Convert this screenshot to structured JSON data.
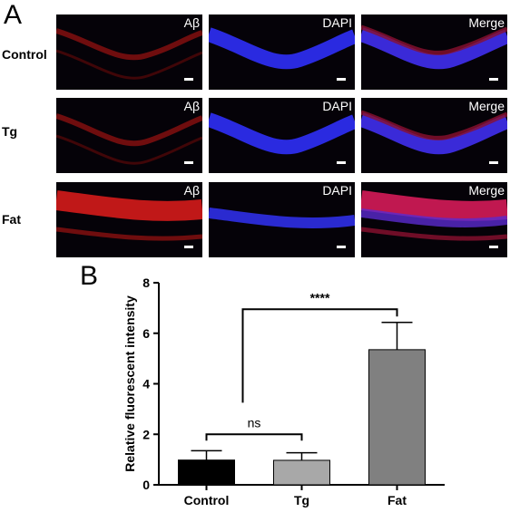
{
  "panel_a": {
    "letter": "A",
    "rows": [
      {
        "label": "Control"
      },
      {
        "label": "Tg"
      },
      {
        "label": "Fat"
      }
    ],
    "columns": [
      "Aβ",
      "DAPI",
      "Merge"
    ]
  },
  "panel_b": {
    "letter": "B"
  },
  "chart_data": {
    "type": "bar",
    "categories": [
      "Control",
      "Tg",
      "Fat"
    ],
    "values": [
      0.98,
      0.97,
      5.35
    ],
    "errors": [
      0.37,
      0.3,
      1.08
    ],
    "bar_colors": [
      "#000000",
      "#a8a8a8",
      "#808080"
    ],
    "ylabel": "Relative fluorescent intensity",
    "xlabel": "",
    "ylim": [
      0,
      8
    ],
    "yticks": [
      0,
      2,
      4,
      6,
      8
    ],
    "grid": false,
    "significance": [
      {
        "from": 0,
        "to": 1,
        "label": "ns"
      },
      {
        "from": 0,
        "to": 2,
        "label": "****"
      }
    ]
  }
}
